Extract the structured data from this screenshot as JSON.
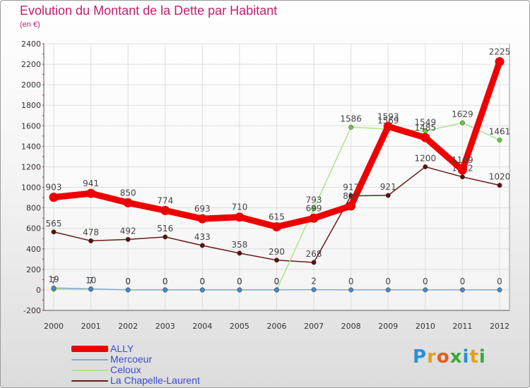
{
  "title": "Evolution du Montant de la Dette par Habitant",
  "subtitle": "(en €)",
  "chart_data": {
    "type": "line",
    "title": "Evolution du Montant de la Dette par Habitant",
    "subtitle": "(en €)",
    "xlabel": "",
    "ylabel": "",
    "categories": [
      "2000",
      "2001",
      "2002",
      "2003",
      "2004",
      "2005",
      "2006",
      "2007",
      "2008",
      "2009",
      "2010",
      "2011",
      "2012"
    ],
    "ylim": [
      -200,
      2400
    ],
    "yticks": [
      -200,
      0,
      200,
      400,
      600,
      800,
      1000,
      1200,
      1400,
      1600,
      1800,
      2000,
      2200,
      2400
    ],
    "grid": true,
    "legend_position": "bottom-left",
    "series": [
      {
        "name": "La Chapelle-Laurent",
        "color": "#6b1a1a",
        "marker": "#5a1010",
        "values": [
          565,
          478,
          492,
          516,
          433,
          358,
          290,
          268,
          917,
          921,
          1200,
          1102,
          1020
        ],
        "labels": [
          "565",
          "478",
          "492",
          "516",
          "433",
          "358",
          "290",
          "268",
          "917",
          "921",
          "1200",
          "1102",
          "1020"
        ]
      },
      {
        "name": "Celoux",
        "color": "#a8e68a",
        "marker": "#66cc33",
        "values": [
          7,
          7,
          0,
          0,
          0,
          0,
          0,
          793,
          1586,
          1569,
          1549,
          1629,
          1461
        ],
        "labels": [
          "7",
          "7",
          "0",
          "0",
          "0",
          "0",
          "0",
          "793",
          "1586",
          "1569",
          "1549",
          "1629",
          "1461"
        ]
      },
      {
        "name": "Mercoeur",
        "color": "#88aacc",
        "marker": "#4d88c2",
        "values": [
          19,
          10,
          0,
          0,
          0,
          0,
          0,
          2,
          0,
          0,
          0,
          0,
          0
        ],
        "labels": [
          "19",
          "10",
          "0",
          "0",
          "0",
          "0",
          "0",
          "2",
          "0",
          "0",
          "0",
          "0",
          "0"
        ]
      },
      {
        "name": "ALLY",
        "color": "#ee0000",
        "marker": "#ee0000",
        "values": [
          903,
          941,
          850,
          774,
          693,
          710,
          615,
          699,
          819,
          1593,
          1485,
          1169,
          2225
        ],
        "labels": [
          "903",
          "941",
          "850",
          "774",
          "693",
          "710",
          "615",
          "699",
          "819",
          "1593",
          "1485",
          "1169",
          "2225"
        ]
      }
    ]
  },
  "legend": {
    "items": [
      {
        "label": "ALLY",
        "color": "#ee0000"
      },
      {
        "label": "Mercoeur",
        "color": "#88aacc"
      },
      {
        "label": "Celoux",
        "color": "#a8e68a"
      },
      {
        "label": "La Chapelle-Laurent",
        "color": "#6b1a1a"
      }
    ]
  },
  "logo": {
    "text": "Proxiti",
    "colors": [
      "#2b8fd8",
      "#e0a020",
      "#e06020",
      "#3aaa3a",
      "#2b8fd8",
      "#e0a020",
      "#3aaa3a"
    ]
  }
}
